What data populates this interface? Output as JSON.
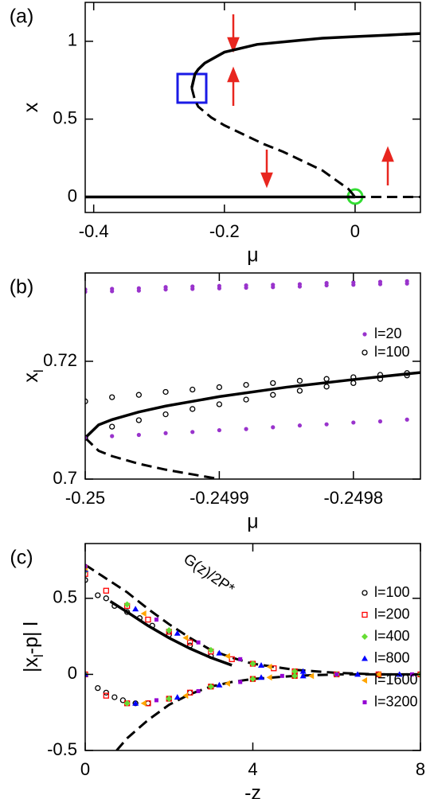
{
  "chart_data": [
    {
      "type": "line",
      "panel_label": "(a)",
      "xlabel": "μ",
      "ylabel": "x",
      "xlim": [
        -0.413,
        0.1
      ],
      "ylim": [
        -0.1,
        1.25
      ],
      "xticks": [
        -0.4,
        -0.2,
        0
      ],
      "yticks": [
        0,
        0.5,
        1
      ],
      "series": [
        {
          "color": "#000000",
          "style": "solid",
          "x": [
            -0.25,
            -0.245,
            -0.24,
            -0.23,
            -0.2,
            -0.15,
            -0.1,
            -0.05,
            0,
            0.05,
            0.1
          ],
          "values": [
            0.7,
            0.79,
            0.82,
            0.86,
            0.93,
            0.98,
            1.0,
            1.02,
            1.03,
            1.04,
            1.05
          ]
        },
        {
          "color": "#000000",
          "style": "dashed",
          "x": [
            -0.25,
            -0.245,
            -0.24,
            -0.22,
            -0.2,
            -0.17,
            -0.14,
            -0.11,
            -0.08,
            -0.05,
            -0.03,
            -0.01,
            0
          ],
          "values": [
            0.7,
            0.62,
            0.58,
            0.51,
            0.46,
            0.4,
            0.34,
            0.29,
            0.23,
            0.17,
            0.11,
            0.05,
            0
          ]
        },
        {
          "color": "#000000",
          "style": "solid",
          "x": [
            -0.413,
            0
          ],
          "values": [
            0,
            0
          ]
        },
        {
          "color": "#000000",
          "style": "dashed",
          "x": [
            0,
            0.1
          ],
          "values": [
            0,
            0
          ]
        }
      ]
    },
    {
      "type": "scatter",
      "panel_label": "(b)",
      "xlabel": "μ",
      "ylabel": "x",
      "ylabel_sub": "l",
      "legend": "right",
      "xlim": [
        -0.25,
        -0.24975
      ],
      "ylim": [
        0.7,
        0.735
      ],
      "xticks": [
        -0.25,
        -0.2499,
        -0.2498
      ],
      "yticks": [
        0.7,
        0.72
      ],
      "series": [
        {
          "color": "#000000",
          "style": "solid",
          "x": [
            -0.25,
            -0.24999,
            -0.24998,
            -0.24996,
            -0.24994,
            -0.2499,
            -0.24985,
            -0.2498,
            -0.24975
          ],
          "values": [
            0.707,
            0.7092,
            0.7101,
            0.7114,
            0.7124,
            0.714,
            0.7156,
            0.7169,
            0.7181
          ]
        },
        {
          "color": "#000000",
          "style": "dashed",
          "x": [
            -0.25,
            -0.24999,
            -0.24998,
            -0.24996,
            -0.24994,
            -0.24992,
            -0.2499
          ],
          "values": [
            0.707,
            0.7048,
            0.7039,
            0.7026,
            0.7016,
            0.7008,
            0.7
          ]
        },
        {
          "name": "l=20",
          "color": "#9933cc",
          "marker": "dot",
          "x": [
            -0.25,
            -0.24998,
            -0.24996,
            -0.24994,
            -0.24992,
            -0.2499,
            -0.24988,
            -0.24986,
            -0.24984,
            -0.24982,
            -0.2498,
            -0.24978,
            -0.24976,
            -0.25,
            -0.24998,
            -0.24996,
            -0.24994,
            -0.24992,
            -0.2499,
            -0.24988,
            -0.24986,
            -0.24984,
            -0.24982,
            -0.2498,
            -0.24978,
            -0.24976,
            -0.25,
            -0.24998,
            -0.24996,
            -0.24994,
            -0.24992,
            -0.2499,
            -0.24988,
            -0.24986,
            -0.24984,
            -0.24982,
            -0.2498,
            -0.24978,
            -0.24976
          ],
          "values": [
            0.7322,
            0.7323,
            0.7324,
            0.7326,
            0.7327,
            0.7328,
            0.7329,
            0.733,
            0.7331,
            0.7333,
            0.7334,
            0.7335,
            0.7336,
            0.7318,
            0.7319,
            0.732,
            0.7322,
            0.7323,
            0.7324,
            0.7325,
            0.7326,
            0.7327,
            0.7329,
            0.733,
            0.7331,
            0.7332,
            0.707,
            0.7073,
            0.7075,
            0.7078,
            0.708,
            0.7083,
            0.7085,
            0.7088,
            0.7091,
            0.7093,
            0.7096,
            0.7098,
            0.7101
          ]
        },
        {
          "name": "l=100",
          "color": "#000000",
          "marker": "open-circle",
          "x": [
            -0.25,
            -0.24998,
            -0.24996,
            -0.24994,
            -0.24992,
            -0.2499,
            -0.24988,
            -0.24986,
            -0.24984,
            -0.24982,
            -0.2498,
            -0.24978,
            -0.24976,
            -0.25,
            -0.24998,
            -0.24996,
            -0.24994,
            -0.24992,
            -0.2499,
            -0.24988,
            -0.24986,
            -0.24984,
            -0.24982,
            -0.2498,
            -0.24978,
            -0.24976
          ],
          "values": [
            0.7132,
            0.7139,
            0.7143,
            0.7148,
            0.7152,
            0.7156,
            0.716,
            0.7163,
            0.7167,
            0.717,
            0.7173,
            0.7177,
            0.718,
            0.707,
            0.7089,
            0.71,
            0.711,
            0.7119,
            0.7127,
            0.7135,
            0.7143,
            0.715,
            0.7157,
            0.7163,
            0.717,
            0.7176
          ]
        }
      ]
    },
    {
      "type": "scatter",
      "panel_label": "(c)",
      "xlabel": "-z",
      "ylabel": "|x",
      "ylabel_sub": "l",
      "ylabel_tail": "-p| l",
      "annotation": "G(z)/2P*",
      "legend": "upper right",
      "xlim": [
        0,
        8
      ],
      "ylim": [
        -0.5,
        0.86
      ],
      "xticks": [
        0,
        4,
        8
      ],
      "yticks": [
        -0.5,
        0,
        0.5
      ],
      "series": [
        {
          "color": "#000000",
          "style": "dashed",
          "x": [
            0,
            0.5,
            1,
            1.5,
            2,
            2.5,
            3,
            3.5,
            4,
            5,
            6,
            7,
            8
          ],
          "values": [
            0.72,
            0.63,
            0.54,
            0.43,
            0.33,
            0.24,
            0.16,
            0.11,
            0.07,
            0.03,
            0.01,
            0,
            0
          ]
        },
        {
          "color": "#000000",
          "style": "solid",
          "x": [
            0.6,
            1,
            1.5,
            2,
            2.5,
            3,
            3.5
          ],
          "values": [
            0.48,
            0.41,
            0.32,
            0.24,
            0.17,
            0.11,
            0.06
          ]
        },
        {
          "color": "#000000",
          "style": "dashed",
          "x": [
            0.75,
            1,
            1.5,
            2,
            2.5,
            3,
            3.5,
            4,
            5,
            6,
            8
          ],
          "values": [
            -0.5,
            -0.42,
            -0.3,
            -0.2,
            -0.13,
            -0.08,
            -0.05,
            -0.03,
            -0.01,
            0,
            0
          ]
        },
        {
          "name": "l=100",
          "color": "#000000",
          "marker": "open-circle",
          "x": [
            0,
            0.3,
            0.5,
            0.7,
            1,
            1.3,
            1.6,
            2,
            2.5,
            3,
            0.3,
            0.5,
            0.7,
            0.9,
            1.2,
            1.5,
            2,
            2.5,
            3,
            4,
            5,
            6,
            7,
            8
          ],
          "values": [
            0.62,
            0.52,
            0.5,
            0.45,
            0.41,
            0.37,
            0.32,
            0.26,
            0.19,
            0.12,
            -0.09,
            -0.12,
            -0.15,
            -0.17,
            -0.19,
            -0.19,
            -0.16,
            -0.12,
            -0.08,
            -0.03,
            -0.01,
            0,
            0,
            0
          ]
        },
        {
          "name": "l=200",
          "color": "#ff0000",
          "marker": "open-square",
          "x": [
            0,
            0.5,
            1,
            1.5,
            2,
            2.5,
            3,
            3.5,
            4,
            4.5,
            5,
            0,
            0.5,
            1,
            1.5,
            2,
            2.5,
            3,
            4,
            5,
            6,
            7,
            8
          ],
          "values": [
            0.66,
            0.55,
            0.45,
            0.36,
            0.28,
            0.21,
            0.15,
            0.1,
            0.07,
            0.04,
            0.02,
            0,
            -0.14,
            -0.19,
            -0.19,
            -0.16,
            -0.12,
            -0.08,
            -0.03,
            -0.01,
            0,
            0,
            0
          ]
        },
        {
          "name": "l=400",
          "color": "#66dd33",
          "marker": "diamond",
          "x": [
            0,
            1,
            2,
            3,
            4,
            5,
            0,
            1,
            2,
            3,
            4,
            5,
            6,
            8
          ],
          "values": [
            0.68,
            0.46,
            0.29,
            0.16,
            0.07,
            0.02,
            0,
            -0.19,
            -0.16,
            -0.08,
            -0.03,
            -0.01,
            0,
            0
          ]
        },
        {
          "name": "l=800",
          "color": "#0000ff",
          "marker": "triangle-up",
          "x": [
            0,
            1.2,
            2.2,
            3.2,
            4.2,
            5.2,
            0,
            1.2,
            2.2,
            3.2,
            4.2,
            5.2,
            6.5,
            7.5
          ],
          "values": [
            0.69,
            0.43,
            0.27,
            0.14,
            0.06,
            0.02,
            0,
            -0.19,
            -0.15,
            -0.07,
            -0.02,
            -0.01,
            0,
            0
          ]
        },
        {
          "name": "l=1600",
          "color": "#ffa500",
          "marker": "triangle-left",
          "x": [
            0,
            1.4,
            2.4,
            3.4,
            4.4,
            1.4,
            2.4,
            3.4,
            4.4,
            5.4,
            7
          ],
          "values": [
            0.7,
            0.4,
            0.24,
            0.12,
            0.05,
            -0.19,
            -0.14,
            -0.06,
            -0.02,
            -0.01,
            0
          ]
        },
        {
          "name": "l=3200",
          "color": "#9400d3",
          "marker": "square",
          "x": [
            0,
            1.7,
            2.7,
            3.7,
            1.7,
            2.7,
            3.7,
            4.7,
            6,
            7.8
          ],
          "values": [
            0.71,
            0.36,
            0.21,
            0.1,
            -0.17,
            -0.11,
            -0.05,
            -0.01,
            0,
            0
          ]
        }
      ]
    }
  ]
}
